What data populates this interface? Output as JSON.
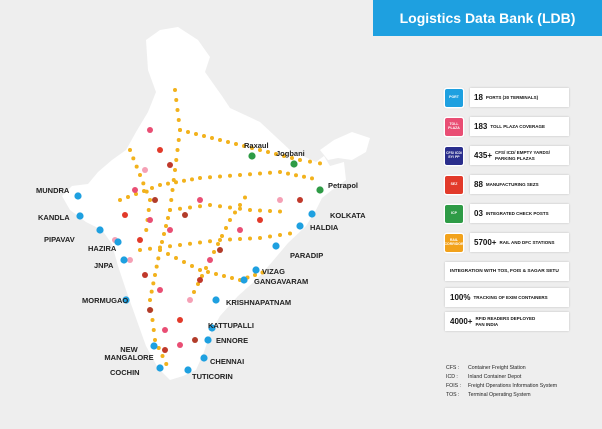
{
  "title": "Logistics Data Bank (LDB)",
  "colors": {
    "banner": "#1ea0e0",
    "port": "#1ea0e0",
    "toll": "#e94e74",
    "cfs": "#2a2e8c",
    "sez": "#e23a2a",
    "icp": "#2e9b46",
    "rail": "#f2a21b",
    "corridor": "#f2b21c"
  },
  "ports": [
    "MUNDRA",
    "KANDLA",
    "PIPAVAV",
    "HAZIRA",
    "JNPA",
    "MORMUGAO",
    "NEW MANGALORE",
    "COCHIN",
    "TUTICORIN",
    "CHENNAI",
    "ENNORE",
    "KATTUPALLI",
    "KRISHNAPATNAM",
    "GANGAVARAM",
    "VIZAG",
    "PARADIP",
    "HALDIA",
    "KOLKATA"
  ],
  "border_points": [
    "Raxaul",
    "Jogbani",
    "Petrapol"
  ],
  "legend": [
    {
      "badge": "PORT",
      "value": "18",
      "label": "PORTS (30 TERMINALS)",
      "color": "#1ea0e0"
    },
    {
      "badge": "TOLL PLAZA",
      "value": "183",
      "label": "TOLL PLAZA COVERAGE",
      "color": "#e94e74"
    },
    {
      "badge": "CFS/ ICD/ EY/ PP",
      "value": "435+",
      "label": "CFS/ ICD/ EMPTY YARDS/ PARKING PLAZAS",
      "color": "#2a2e8c"
    },
    {
      "badge": "SEZ",
      "value": "88",
      "label": "MANUFACTURING SEZs",
      "color": "#e23a2a"
    },
    {
      "badge": "ICP",
      "value": "03",
      "label": "INTEGRATED CHECK POSTS",
      "color": "#2e9b46"
    },
    {
      "badge": "RAIL CORRIDOR",
      "value": "5700+",
      "label": "RAIL AND DFC STATIONS",
      "color": "#f2a21b"
    }
  ],
  "integration": "INTEGRATION WITH TOS, FOIS & SAGAR SETU",
  "tracking": {
    "value": "100%",
    "label": "TRACKING OF EXIM CONTAINERS"
  },
  "rfid": {
    "value": "4000+",
    "label": "RFID READERS DEPLOYED PAN INDIA"
  },
  "abbreviations": [
    {
      "key": "CFS :",
      "desc": "Container Freight Station"
    },
    {
      "key": "ICD :",
      "desc": "Inland Container Depot"
    },
    {
      "key": "FOIS :",
      "desc": "Freight Operations Information System"
    },
    {
      "key": "TOS :",
      "desc": "Terminal Operating System"
    }
  ]
}
